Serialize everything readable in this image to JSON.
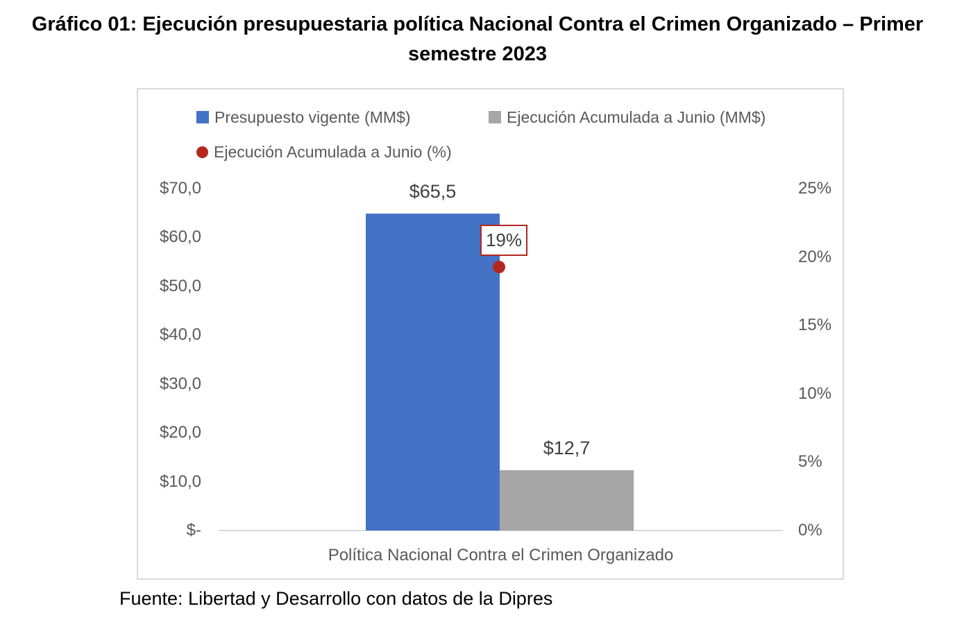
{
  "page": {
    "title": "Gráfico 01: Ejecución presupuestaria política Nacional Contra el Crimen Organizado – Primer semestre 2023",
    "source_note": "Fuente: Libertad y Desarrollo con datos de la Dipres"
  },
  "chart_data": {
    "type": "bar",
    "subtype": "clustered bars with secondary-axis point marker",
    "title": "Gráfico 01: Ejecución presupuestaria política Nacional Contra el Crimen Organizado – Primer semestre 2023",
    "categories": [
      "Política Nacional Contra el Crimen Organizado"
    ],
    "series": [
      {
        "name": "Presupuesto vigente (MM$)",
        "mark": "bar",
        "axis": "left",
        "values": [
          65.5
        ],
        "data_labels": [
          "$65,5"
        ],
        "color": "#4472C4"
      },
      {
        "name": "Ejecución Acumulada a Junio (MM$)",
        "mark": "bar",
        "axis": "left",
        "values": [
          12.7
        ],
        "data_labels": [
          "$12,7"
        ],
        "color": "#A6A6A6"
      },
      {
        "name": "Ejecución Acumulada a Junio (%)",
        "mark": "point",
        "axis": "right",
        "values": [
          19
        ],
        "data_labels": [
          "19%"
        ],
        "color": "#B2281E"
      }
    ],
    "left_axis": {
      "unit": "MM$",
      "min": 0,
      "max": 70,
      "step": 10,
      "ticks": [
        "$70,0",
        "$60,0",
        "$50,0",
        "$40,0",
        "$30,0",
        "$20,0",
        "$10,0",
        "$-"
      ]
    },
    "right_axis": {
      "unit": "%",
      "min": 0,
      "max": 25,
      "step": 5,
      "ticks": [
        "25%",
        "20%",
        "15%",
        "10%",
        "5%",
        "0%"
      ]
    },
    "legend_position": "top",
    "gridlines": false,
    "colors": {
      "bar_primary": "#4472C4",
      "bar_secondary": "#A6A6A6",
      "point_marker": "#B2281E",
      "axis_text": "#595959",
      "frame_border": "#D9D9D9",
      "title_text": "#000000"
    }
  }
}
